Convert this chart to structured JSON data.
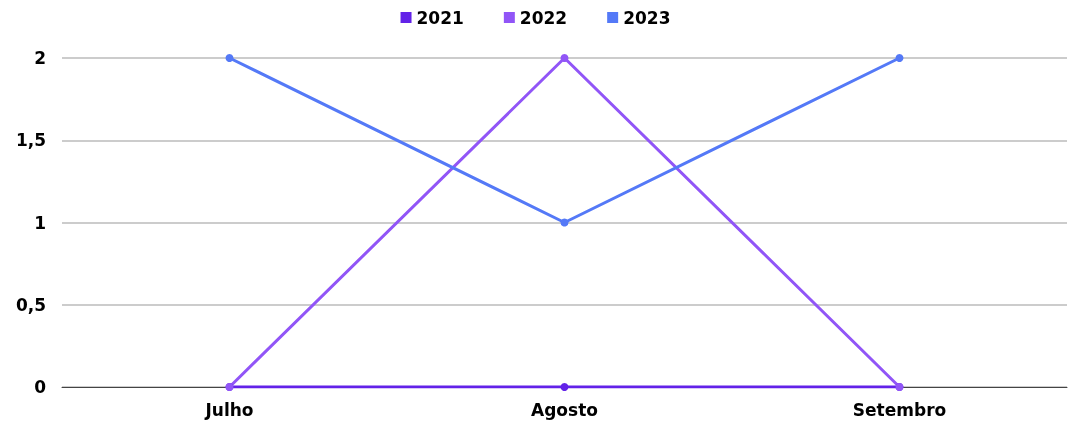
{
  "chart_data": {
    "type": "line",
    "categories": [
      "Julho",
      "Agosto",
      "Setembro"
    ],
    "series": [
      {
        "name": "2021",
        "color": "#6222e8",
        "values": [
          0,
          0,
          0
        ]
      },
      {
        "name": "2022",
        "color": "#9155f7",
        "values": [
          0,
          2,
          0
        ]
      },
      {
        "name": "2023",
        "color": "#5479f7",
        "values": [
          2,
          1,
          2
        ]
      }
    ],
    "ylim": [
      0,
      2
    ],
    "yticks": [
      0,
      {
        "value": 0.5,
        "label": "0,5"
      },
      1,
      {
        "value": 1.5,
        "label": "1,5"
      },
      2
    ],
    "grid": "y",
    "legend": "top",
    "marker": "circle",
    "line_style": "solid"
  }
}
